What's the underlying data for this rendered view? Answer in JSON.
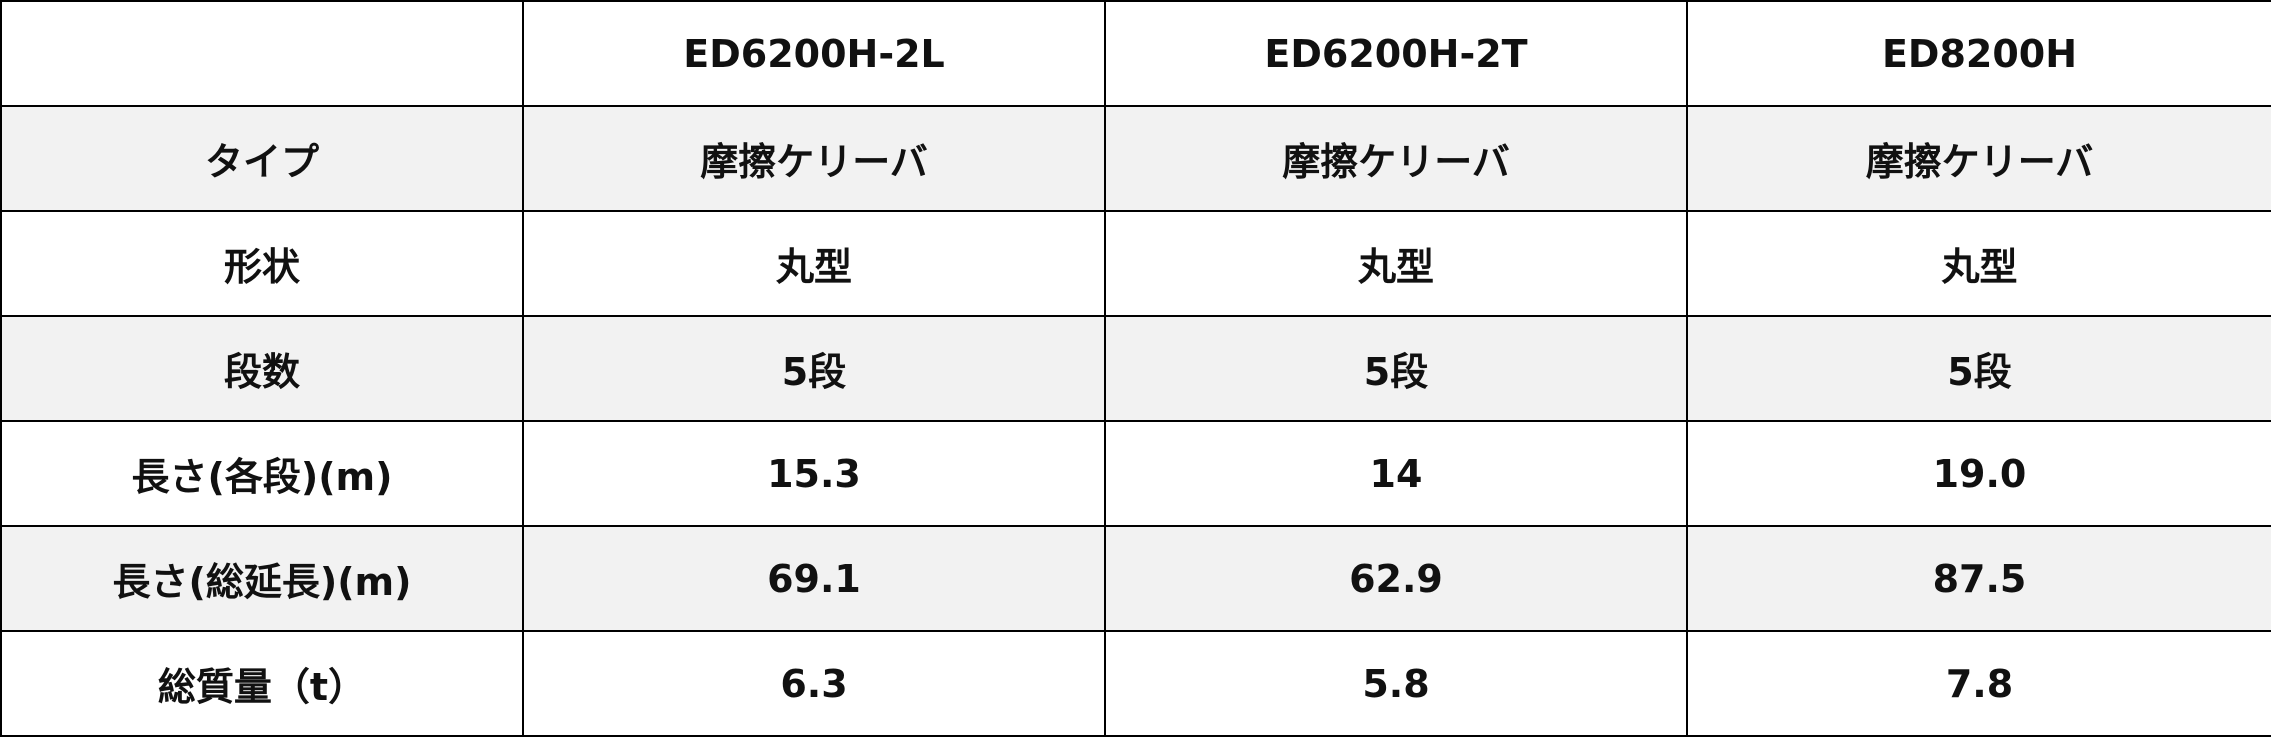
{
  "header": {
    "corner": "",
    "models": [
      "ED6200H-2L",
      "ED6200H-2T",
      "ED8200H"
    ]
  },
  "rows": [
    {
      "label": "タイプ",
      "values": [
        "摩擦ケリーバ",
        "摩擦ケリーバ",
        "摩擦ケリーバ"
      ]
    },
    {
      "label": "形状",
      "values": [
        "丸型",
        "丸型",
        "丸型"
      ]
    },
    {
      "label": "段数",
      "values": [
        "5段",
        "5段",
        "5段"
      ]
    },
    {
      "label": "長さ(各段)(m)",
      "values": [
        "15.3",
        "14",
        "19.0"
      ]
    },
    {
      "label": "長さ(総延長)(m)",
      "values": [
        "69.1",
        "62.9",
        "87.5"
      ]
    },
    {
      "label": "総質量（t）",
      "values": [
        "6.3",
        "5.8",
        "7.8"
      ]
    }
  ],
  "colors": {
    "border": "#000000",
    "shaded_row": "#f2f2f2",
    "plain_row": "#ffffff"
  }
}
